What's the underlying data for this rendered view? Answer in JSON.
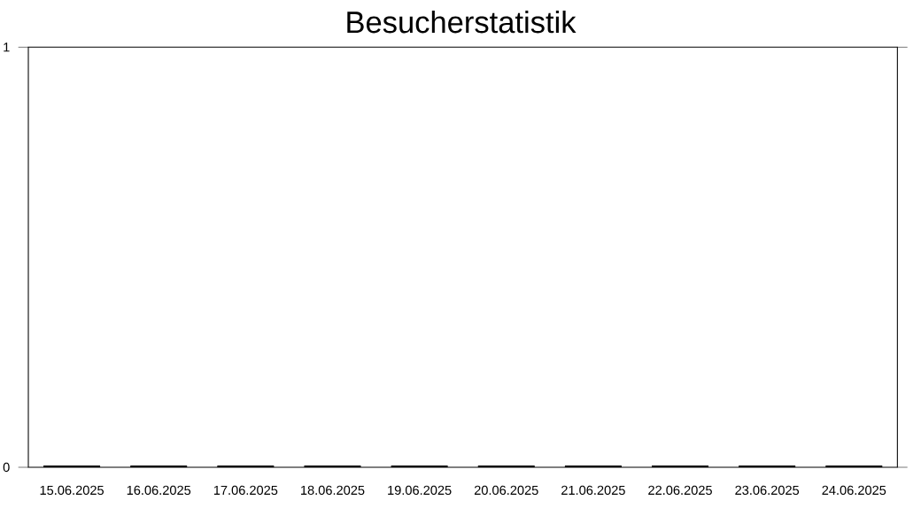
{
  "chart_data": {
    "type": "bar",
    "title": "Besucherstatistik",
    "categories": [
      "15.06.2025",
      "16.06.2025",
      "17.06.2025",
      "18.06.2025",
      "19.06.2025",
      "20.06.2025",
      "21.06.2025",
      "22.06.2025",
      "23.06.2025",
      "24.06.2025"
    ],
    "values": [
      0,
      0,
      0,
      0,
      0,
      0,
      0,
      0,
      0,
      0
    ],
    "color": "#000000",
    "ylim": [
      0,
      1
    ],
    "yticks": [
      0,
      1
    ],
    "grid": false
  }
}
